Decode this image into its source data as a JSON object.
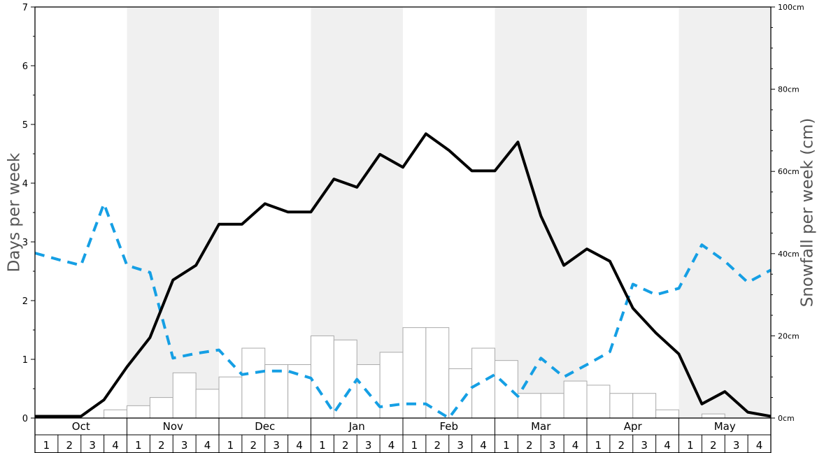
{
  "chart_data": {
    "type": "bar",
    "y_left": {
      "label": "Days per week",
      "lim": [
        0,
        7
      ],
      "ticks": [
        "0",
        "1",
        "2",
        "3",
        "4",
        "5",
        "6",
        "7"
      ]
    },
    "y_right": {
      "label": "Snowfall per week (cm)",
      "lim": [
        0,
        100
      ],
      "ticks": [
        "0cm",
        "20cm",
        "40cm",
        "60cm",
        "80cm",
        "100cm"
      ]
    },
    "months": [
      "Oct",
      "Nov",
      "Dec",
      "Jan",
      "Feb",
      "Mar",
      "Apr",
      "May"
    ],
    "weeks": [
      "1",
      "2",
      "3",
      "4"
    ],
    "snowfall_cm": [
      0,
      0,
      0,
      2,
      3,
      5,
      11,
      7,
      10,
      17,
      13,
      13,
      20,
      19,
      13,
      16,
      22,
      22,
      12,
      17,
      14,
      6,
      6,
      9,
      8,
      6,
      6,
      2,
      0,
      1,
      0,
      0
    ],
    "days_solid": [
      0.03,
      0.03,
      0.03,
      0.31,
      0.87,
      1.37,
      2.35,
      2.6,
      3.3,
      3.3,
      3.65,
      3.51,
      3.51,
      4.07,
      3.93,
      4.49,
      4.27,
      4.84,
      4.56,
      4.21,
      4.21,
      4.7,
      3.44,
      2.6,
      2.88,
      2.67,
      1.87,
      1.45,
      1.09,
      0.24,
      0.45,
      0.1,
      0.03
    ],
    "days_dashed": [
      2.81,
      2.7,
      2.6,
      3.65,
      2.6,
      2.48,
      1.02,
      1.1,
      1.16,
      0.74,
      0.8,
      0.8,
      0.68,
      0.09,
      0.66,
      0.19,
      0.24,
      0.24,
      0.0,
      0.52,
      0.74,
      0.37,
      1.02,
      0.7,
      0.91,
      1.13,
      2.28,
      2.1,
      2.21,
      2.95,
      2.67,
      2.31,
      2.52
    ],
    "colors": {
      "solid": "#000000",
      "dashed": "#159fe4",
      "bar_fill": "#ffffff",
      "bar_stroke": "#aaaaaa",
      "band": "#f0f0f0"
    }
  }
}
